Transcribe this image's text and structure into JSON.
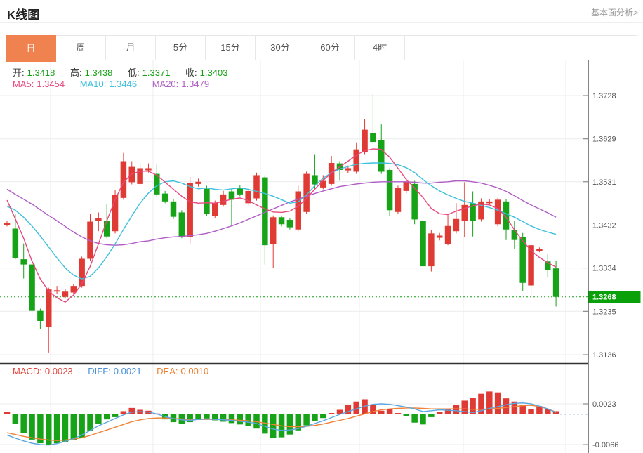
{
  "header": {
    "title": "K线图",
    "link": "基本面分析>"
  },
  "tabs": {
    "items": [
      "日",
      "周",
      "月",
      "5分",
      "15分",
      "30分",
      "60分",
      "4时"
    ],
    "active_index": 0
  },
  "legend": {
    "ohlc": [
      {
        "label": "开:",
        "value": "1.3418"
      },
      {
        "label": "高:",
        "value": "1.3438"
      },
      {
        "label": "低:",
        "value": "1.3371"
      },
      {
        "label": "收:",
        "value": "1.3403"
      }
    ],
    "ma": [
      {
        "label": "MA5:",
        "value": "1.3454"
      },
      {
        "label": "MA10:",
        "value": "1.3446"
      },
      {
        "label": "MA20:",
        "value": "1.3479"
      }
    ],
    "macd": [
      {
        "label": "MACD:",
        "value": "0.0023"
      },
      {
        "label": "DIFF:",
        "value": "0.0021"
      },
      {
        "label": "DEA:",
        "value": "0.0010"
      }
    ]
  },
  "chart_data": {
    "type": "candlestick",
    "title": "K线图",
    "x_labels": [],
    "y_ticks": [
      "1.3728",
      "1.3629",
      "1.3531",
      "1.3432",
      "1.3334",
      "1.3235",
      "1.3136"
    ],
    "y_range": [
      1.3136,
      1.3728
    ],
    "last_price": "1.3268",
    "last_price_value": 1.3268,
    "grid": true,
    "legend_position": "top-left",
    "candles_ohlc": [
      [
        1.3432,
        1.3442,
        1.3429,
        1.3437
      ],
      [
        1.3424,
        1.3458,
        1.3354,
        1.3357
      ],
      [
        1.3354,
        1.339,
        1.331,
        1.3342
      ],
      [
        1.3342,
        1.3346,
        1.3227,
        1.3236
      ],
      [
        1.3236,
        1.3241,
        1.3195,
        1.3213
      ],
      [
        1.32,
        1.3289,
        1.3141,
        1.3285
      ],
      [
        1.328,
        1.3293,
        1.3274,
        1.3283
      ],
      [
        1.3268,
        1.3286,
        1.3264,
        1.328
      ],
      [
        1.3278,
        1.3297,
        1.3274,
        1.3293
      ],
      [
        1.3293,
        1.336,
        1.3289,
        1.3355
      ],
      [
        1.3355,
        1.3458,
        1.335,
        1.344
      ],
      [
        1.3442,
        1.3461,
        1.3418,
        1.3448
      ],
      [
        1.3442,
        1.348,
        1.3402,
        1.3406
      ],
      [
        1.3418,
        1.3512,
        1.3413,
        1.3501
      ],
      [
        1.3494,
        1.3597,
        1.349,
        1.3578
      ],
      [
        1.353,
        1.3578,
        1.3525,
        1.3565
      ],
      [
        1.3526,
        1.3573,
        1.3522,
        1.3562
      ],
      [
        1.3557,
        1.3573,
        1.3552,
        1.3562
      ],
      [
        1.3549,
        1.3571,
        1.3498,
        1.3502
      ],
      [
        1.3504,
        1.351,
        1.3482,
        1.3486
      ],
      [
        1.3486,
        1.3491,
        1.3446,
        1.3451
      ],
      [
        1.3461,
        1.3466,
        1.3402,
        1.3406
      ],
      [
        1.3405,
        1.3542,
        1.339,
        1.3528
      ],
      [
        1.3526,
        1.3538,
        1.352,
        1.3531
      ],
      [
        1.3515,
        1.3522,
        1.3453,
        1.3458
      ],
      [
        1.3453,
        1.3488,
        1.3448,
        1.3483
      ],
      [
        1.3478,
        1.351,
        1.3474,
        1.3502
      ],
      [
        1.3509,
        1.3514,
        1.3432,
        1.349
      ],
      [
        1.3517,
        1.3523,
        1.3498,
        1.3502
      ],
      [
        1.3482,
        1.3517,
        1.3477,
        1.351
      ],
      [
        1.3493,
        1.3552,
        1.3488,
        1.3546
      ],
      [
        1.3541,
        1.3546,
        1.3342,
        1.3386
      ],
      [
        1.3389,
        1.3454,
        1.3334,
        1.345
      ],
      [
        1.345,
        1.3454,
        1.3429,
        1.3434
      ],
      [
        1.3444,
        1.3448,
        1.3422,
        1.3427
      ],
      [
        1.3422,
        1.3522,
        1.3418,
        1.3509
      ],
      [
        1.3462,
        1.3554,
        1.3458,
        1.3549
      ],
      [
        1.3546,
        1.3594,
        1.3514,
        1.3525
      ],
      [
        1.3518,
        1.3546,
        1.3514,
        1.3533
      ],
      [
        1.3526,
        1.359,
        1.3522,
        1.3574
      ],
      [
        1.3573,
        1.3578,
        1.3533,
        1.3558
      ],
      [
        1.3557,
        1.3568,
        1.355,
        1.3562
      ],
      [
        1.3554,
        1.3621,
        1.3549,
        1.3605
      ],
      [
        1.3598,
        1.3675,
        1.3594,
        1.365
      ],
      [
        1.3642,
        1.3731,
        1.3618,
        1.3622
      ],
      [
        1.3626,
        1.3662,
        1.3549,
        1.3554
      ],
      [
        1.3558,
        1.3562,
        1.3453,
        1.3466
      ],
      [
        1.3462,
        1.3522,
        1.3458,
        1.3517
      ],
      [
        1.351,
        1.3538,
        1.3505,
        1.353
      ],
      [
        1.3526,
        1.3533,
        1.3434,
        1.3445
      ],
      [
        1.3442,
        1.3454,
        1.3326,
        1.3338
      ],
      [
        1.3338,
        1.3421,
        1.3326,
        1.3413
      ],
      [
        1.3403,
        1.3414,
        1.3397,
        1.3408
      ],
      [
        1.3389,
        1.3458,
        1.3386,
        1.343
      ],
      [
        1.3418,
        1.3482,
        1.3413,
        1.3446
      ],
      [
        1.3442,
        1.353,
        1.3405,
        1.3478
      ],
      [
        1.3482,
        1.3509,
        1.3406,
        1.3442
      ],
      [
        1.3445,
        1.3493,
        1.344,
        1.3486
      ],
      [
        1.3482,
        1.3491,
        1.3477,
        1.3486
      ],
      [
        1.3434,
        1.3494,
        1.3429,
        1.349
      ],
      [
        1.3486,
        1.3491,
        1.3398,
        1.3422
      ],
      [
        1.3421,
        1.3442,
        1.3378,
        1.3398
      ],
      [
        1.3405,
        1.3414,
        1.3281,
        1.33
      ],
      [
        1.3294,
        1.3394,
        1.3265,
        1.3386
      ],
      [
        1.3373,
        1.3381,
        1.337,
        1.3378
      ],
      [
        1.3349,
        1.3366,
        1.3314,
        1.333
      ],
      [
        1.3333,
        1.335,
        1.3246,
        1.3268
      ]
    ],
    "ma5": [
      1.3489,
      1.3446,
      1.3402,
      1.335,
      1.3309,
      1.3281,
      1.3266,
      1.3256,
      1.3272,
      1.3298,
      1.3338,
      1.3389,
      1.3442,
      1.349,
      1.353,
      1.3549,
      1.3555,
      1.3555,
      1.3546,
      1.353,
      1.3514,
      1.3498,
      1.3485,
      1.3482,
      1.3483,
      1.3482,
      1.3486,
      1.3491,
      1.3494,
      1.3488,
      1.3478,
      1.3469,
      1.3462,
      1.3461,
      1.3464,
      1.3475,
      1.3493,
      1.3514,
      1.3534,
      1.3551,
      1.3565,
      1.3578,
      1.3592,
      1.3602,
      1.3606,
      1.3605,
      1.3587,
      1.3562,
      1.3536,
      1.3517,
      1.3495,
      1.347,
      1.3458,
      1.3456,
      1.3464,
      1.347,
      1.3476,
      1.348,
      1.3478,
      1.347,
      1.345,
      1.3421,
      1.3396,
      1.3374,
      1.3358,
      1.3346,
      1.3336
    ],
    "ma10": [
      1.3475,
      1.3466,
      1.345,
      1.343,
      1.3407,
      1.3382,
      1.3357,
      1.3334,
      1.3318,
      1.3309,
      1.3315,
      1.3334,
      1.336,
      1.3389,
      1.3422,
      1.3453,
      1.3482,
      1.3505,
      1.3522,
      1.3531,
      1.3533,
      1.3528,
      1.352,
      1.3515,
      1.3517,
      1.3514,
      1.3512,
      1.3515,
      1.3517,
      1.3514,
      1.3509,
      1.3504,
      1.3498,
      1.349,
      1.3482,
      1.3485,
      1.3501,
      1.3522,
      1.3539,
      1.3552,
      1.356,
      1.3566,
      1.3571,
      1.3573,
      1.3574,
      1.3574,
      1.3573,
      1.357,
      1.3563,
      1.3552,
      1.3536,
      1.3522,
      1.351,
      1.3501,
      1.3493,
      1.3486,
      1.3482,
      1.3477,
      1.3472,
      1.3466,
      1.3458,
      1.345,
      1.344,
      1.343,
      1.3422,
      1.3416,
      1.3411
    ],
    "ma20": [
      1.3514,
      1.3502,
      1.3491,
      1.348,
      1.3467,
      1.3454,
      1.3442,
      1.3429,
      1.3416,
      1.3405,
      1.3396,
      1.339,
      1.3387,
      1.3386,
      1.3387,
      1.339,
      1.3394,
      1.3396,
      1.34,
      1.3403,
      1.3405,
      1.3406,
      1.3408,
      1.341,
      1.3413,
      1.3418,
      1.3424,
      1.343,
      1.3437,
      1.3445,
      1.3453,
      1.3461,
      1.3469,
      1.3477,
      1.3485,
      1.3491,
      1.3498,
      1.3504,
      1.351,
      1.3515,
      1.352,
      1.3523,
      1.3526,
      1.3528,
      1.353,
      1.3531,
      1.3531,
      1.3531,
      1.3531,
      1.353,
      1.3528,
      1.3528,
      1.353,
      1.3531,
      1.3533,
      1.3533,
      1.3531,
      1.3528,
      1.3523,
      1.3517,
      1.3509,
      1.3499,
      1.3488,
      1.3478,
      1.3469,
      1.346,
      1.345
    ],
    "macd": {
      "y_ticks": [
        "0.0023",
        "-0.0066"
      ],
      "hist": [
        0.0005,
        -0.002,
        -0.0041,
        -0.0055,
        -0.0063,
        -0.0066,
        -0.0063,
        -0.006,
        -0.0056,
        -0.0051,
        -0.0036,
        -0.0021,
        -0.0011,
        -0.0006,
        0.0007,
        0.0014,
        0.001,
        0.0008,
        0.0002,
        -0.0011,
        -0.0017,
        -0.002,
        -0.0017,
        -0.0012,
        -0.0009,
        -0.0013,
        -0.0016,
        -0.0019,
        -0.0022,
        -0.0026,
        -0.0031,
        -0.0042,
        -0.0052,
        -0.005,
        -0.0044,
        -0.0035,
        -0.0024,
        -0.0014,
        -0.0008,
        0.0003,
        0.001,
        0.002,
        0.0028,
        0.0033,
        0.002,
        0.0008,
        0.0012,
        0.0003,
        -0.0004,
        -0.0018,
        -0.0022,
        -0.0006,
        0.0005,
        0.0012,
        0.002,
        0.003,
        0.0036,
        0.0045,
        0.005,
        0.0048,
        0.0035,
        0.0028,
        0.002,
        0.0012,
        0.0018,
        0.0012,
        0.0007
      ],
      "diff": [
        -0.0045,
        -0.0052,
        -0.0058,
        -0.0063,
        -0.0066,
        -0.0067,
        -0.0064,
        -0.0059,
        -0.0053,
        -0.0045,
        -0.0035,
        -0.0025,
        -0.0017,
        -0.0009,
        -0.0001,
        0.0005,
        0.0006,
        0.0005,
        0.0001,
        -0.0005,
        -0.0009,
        -0.0012,
        -0.0013,
        -0.0011,
        -0.001,
        -0.0011,
        -0.0012,
        -0.0013,
        -0.0015,
        -0.0017,
        -0.002,
        -0.0026,
        -0.0032,
        -0.0035,
        -0.0034,
        -0.0031,
        -0.0026,
        -0.002,
        -0.0014,
        -0.0007,
        0.0,
        0.0006,
        0.0012,
        0.0018,
        0.0022,
        0.0023,
        0.0022,
        0.0019,
        0.0016,
        0.0012,
        0.0006,
        0.0008,
        0.001,
        0.0009,
        0.0008,
        0.0006,
        0.0004,
        0.0008,
        0.0013,
        0.0017,
        0.0021,
        0.0024,
        0.0025,
        0.0023,
        0.0018,
        0.0012,
        0.0004
      ],
      "dea": [
        -0.004,
        -0.0044,
        -0.0048,
        -0.0051,
        -0.0054,
        -0.0056,
        -0.0057,
        -0.0056,
        -0.0054,
        -0.0051,
        -0.0046,
        -0.004,
        -0.0034,
        -0.0028,
        -0.0022,
        -0.0016,
        -0.0012,
        -0.0009,
        -0.0008,
        -0.0008,
        -0.0009,
        -0.001,
        -0.0011,
        -0.0011,
        -0.0011,
        -0.0011,
        -0.0011,
        -0.0012,
        -0.0013,
        -0.0014,
        -0.0016,
        -0.0019,
        -0.0022,
        -0.0025,
        -0.0027,
        -0.0027,
        -0.0026,
        -0.0024,
        -0.0021,
        -0.0017,
        -0.0013,
        -0.0009,
        -0.0004,
        0.0001,
        0.0006,
        0.001,
        0.0012,
        0.0013,
        0.0014,
        0.0014,
        0.0013,
        0.0012,
        0.0012,
        0.0012,
        0.0012,
        0.0012,
        0.0011,
        0.0011,
        0.0012,
        0.0013,
        0.0015,
        0.0017,
        0.0019,
        0.002,
        0.0017,
        0.0012,
        0.0005
      ]
    },
    "colors": {
      "up": "#e03a34",
      "down": "#17a317",
      "ma5": "#e8487e",
      "ma10": "#3fc0dc",
      "ma20": "#b05cc6",
      "diff_line": "#5aa7e0",
      "dea_line": "#f08337",
      "badge_bg": "#0aa00a",
      "accent_tab": "#f0824f",
      "grid": "#ececec",
      "axis": "#444",
      "tick_text": "#555",
      "last_price_line": "#18a018",
      "zero_dash": "#9cc4e4"
    }
  }
}
